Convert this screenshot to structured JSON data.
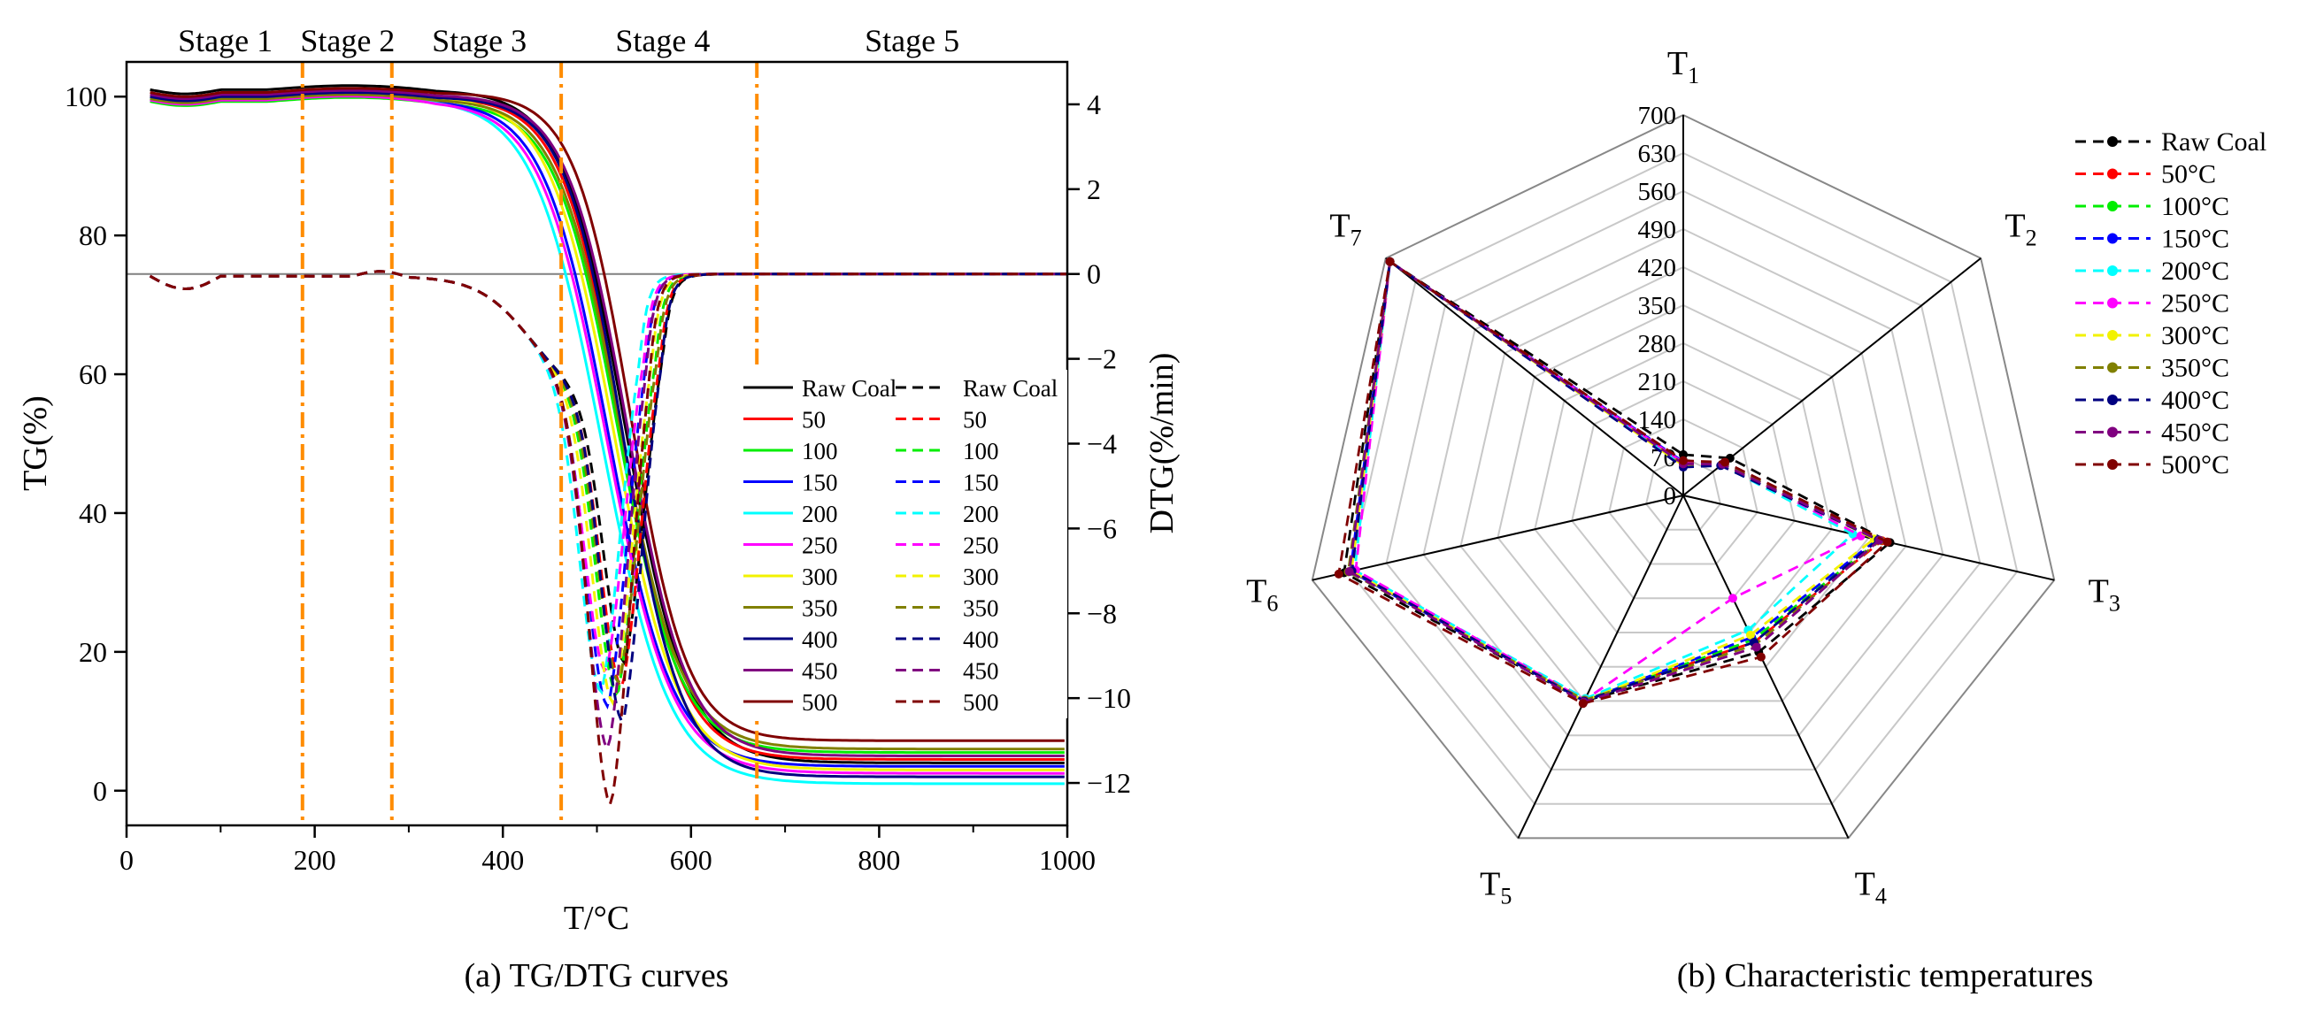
{
  "colors": {
    "Raw Coal": "#000000",
    "50": "#ff0000",
    "100": "#00ee00",
    "150": "#0000ff",
    "200": "#00ffff",
    "250": "#ff00ff",
    "300": "#f2f200",
    "350": "#808000",
    "400": "#000080",
    "450": "#800080",
    "500": "#800000",
    "stage_line": "#ff8c00",
    "zero_line": "#808080"
  },
  "chart_data": [
    {
      "type": "line",
      "caption": "(a) TG/DTG curves",
      "xlabel": "T/°C",
      "ylabel": "TG(%)",
      "y2label": "DTG(%/min)",
      "xlim": [
        0,
        1000
      ],
      "ylim": [
        -5,
        105
      ],
      "y2lim": [
        -13,
        5
      ],
      "x_ticks": [
        "0",
        "200",
        "400",
        "600",
        "800",
        "1000"
      ],
      "y_ticks": [
        "0",
        "20",
        "40",
        "60",
        "80",
        "100"
      ],
      "y2_ticks": [
        "-12",
        "-10",
        "-8",
        "-6",
        "-4",
        "-2",
        "0",
        "2",
        "4"
      ],
      "stages": [
        {
          "label": "Stage 1",
          "x_center": 105
        },
        {
          "label": "Stage 2",
          "x_center": 235
        },
        {
          "label": "Stage 3",
          "x_center": 375
        },
        {
          "label": "Stage 4",
          "x_center": 570
        },
        {
          "label": "Stage 5",
          "x_center": 835
        }
      ],
      "stage_boundaries": [
        187,
        282,
        462,
        670
      ],
      "legend_header": [
        "Raw Coal",
        "Raw Coal"
      ],
      "legend_labels": [
        "50",
        "100",
        "150",
        "200",
        "250",
        "300",
        "350",
        "400",
        "450",
        "500"
      ],
      "tg_series": [
        {
          "name": "Raw Coal",
          "start": 101.0,
          "mid": 530,
          "width": 33,
          "residue": 4.0
        },
        {
          "name": "50",
          "start": 100.0,
          "mid": 526,
          "width": 32,
          "residue": 4.5
        },
        {
          "name": "100",
          "start": 99.3,
          "mid": 522,
          "width": 33,
          "residue": 5.5
        },
        {
          "name": "150",
          "start": 99.6,
          "mid": 512,
          "width": 34,
          "residue": 3.5
        },
        {
          "name": "200",
          "start": 99.8,
          "mid": 505,
          "width": 36,
          "residue": 1.0
        },
        {
          "name": "250",
          "start": 99.5,
          "mid": 510,
          "width": 35,
          "residue": 2.5
        },
        {
          "name": "300",
          "start": 100.2,
          "mid": 518,
          "width": 34,
          "residue": 3.0
        },
        {
          "name": "350",
          "start": 99.7,
          "mid": 524,
          "width": 33,
          "residue": 6.0
        },
        {
          "name": "400",
          "start": 100.0,
          "mid": 528,
          "width": 31,
          "residue": 2.0
        },
        {
          "name": "450",
          "start": 100.3,
          "mid": 532,
          "width": 32,
          "residue": 5.0
        },
        {
          "name": "500",
          "start": 100.6,
          "mid": 536,
          "width": 30,
          "residue": 7.2
        }
      ],
      "dtg_series": [
        {
          "name": "Raw Coal",
          "peak_x": 530,
          "peak_y": -9.2
        },
        {
          "name": "50",
          "peak_x": 527,
          "peak_y": -9.8
        },
        {
          "name": "100",
          "peak_x": 522,
          "peak_y": -10.0
        },
        {
          "name": "150",
          "peak_x": 512,
          "peak_y": -10.3
        },
        {
          "name": "200",
          "peak_x": 505,
          "peak_y": -10.0
        },
        {
          "name": "250",
          "peak_x": 510,
          "peak_y": -9.5
        },
        {
          "name": "300",
          "peak_x": 518,
          "peak_y": -10.2
        },
        {
          "name": "350",
          "peak_x": 524,
          "peak_y": -9.7
        },
        {
          "name": "400",
          "peak_x": 528,
          "peak_y": -10.6
        },
        {
          "name": "450",
          "peak_x": 512,
          "peak_y": -11.3
        },
        {
          "name": "500",
          "peak_x": 515,
          "peak_y": -12.6
        }
      ]
    },
    {
      "type": "radar",
      "caption": "(b) Characteristic temperatures",
      "axes": [
        "T",
        "T",
        "T",
        "T",
        "T",
        "T",
        "T"
      ],
      "axis_subscripts": [
        "1",
        "2",
        "3",
        "4",
        "5",
        "6",
        "7"
      ],
      "rmax": 700,
      "r_ticks": [
        "0",
        "70",
        "140",
        "210",
        "280",
        "350",
        "420",
        "490",
        "560",
        "630",
        "700"
      ],
      "series": [
        {
          "name": "Raw Coal",
          "values": [
            75,
            110,
            390,
            320,
            420,
            640,
            690
          ]
        },
        {
          "name": "50°C",
          "values": [
            60,
            95,
            375,
            300,
            415,
            630,
            690
          ]
        },
        {
          "name": "100°C",
          "values": [
            58,
            92,
            370,
            295,
            418,
            625,
            690
          ]
        },
        {
          "name": "150°C",
          "values": [
            62,
            95,
            365,
            290,
            420,
            628,
            690
          ]
        },
        {
          "name": "200°C",
          "values": [
            55,
            90,
            320,
            275,
            415,
            620,
            690
          ]
        },
        {
          "name": "250°C",
          "values": [
            60,
            95,
            335,
            210,
            418,
            618,
            690
          ]
        },
        {
          "name": "300°C",
          "values": [
            55,
            92,
            360,
            285,
            420,
            626,
            690
          ]
        },
        {
          "name": "350°C",
          "values": [
            58,
            95,
            372,
            305,
            418,
            632,
            690
          ]
        },
        {
          "name": "400°C",
          "values": [
            52,
            88,
            368,
            300,
            420,
            625,
            690
          ]
        },
        {
          "name": "450°C",
          "values": [
            58,
            92,
            370,
            310,
            422,
            630,
            690
          ]
        },
        {
          "name": "500°C",
          "values": [
            64,
            98,
            385,
            330,
            425,
            650,
            690
          ]
        }
      ]
    }
  ]
}
